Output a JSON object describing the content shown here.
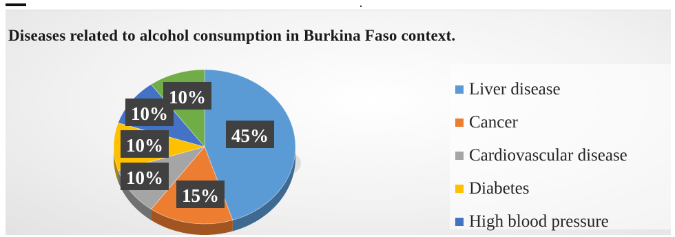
{
  "chart_data": {
    "type": "pie",
    "title": "Diseases related to alcohol consumption in Burkina Faso context.",
    "slices": [
      {
        "name": "Liver disease",
        "value": 45,
        "label": "45%",
        "color": "#5b9bd5"
      },
      {
        "name": "Cancer",
        "value": 15,
        "label": "15%",
        "color": "#ed7d31"
      },
      {
        "name": "Cardiovascular disease",
        "value": 10,
        "label": "10%",
        "color": "#a5a5a5"
      },
      {
        "name": "Diabetes",
        "value": 10,
        "label": "10%",
        "color": "#ffc000"
      },
      {
        "name": "High blood pressure",
        "value": 10,
        "label": "10%",
        "color": "#4472c4"
      },
      {
        "name": "",
        "value": 10,
        "label": "10%",
        "color": "#70ad47"
      }
    ],
    "legend": [
      "Liver disease",
      "Cancer",
      "Cardiovascular disease",
      "Diabetes",
      "High blood pressure"
    ],
    "legend_position": "right",
    "style": "3d"
  }
}
